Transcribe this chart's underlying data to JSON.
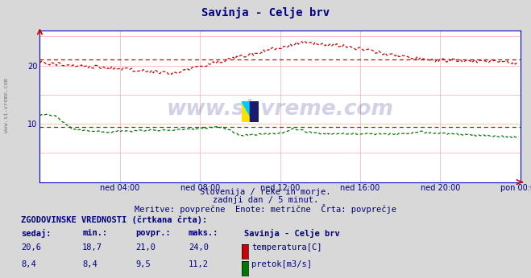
{
  "title": "Savinja - Celje brv",
  "title_color": "#000080",
  "bg_color": "#d8d8d8",
  "plot_bg_color": "#ffffff",
  "grid_color": "#ffaaaa",
  "axis_color": "#0000cc",
  "xlabel_ticks": [
    "ned 04:00",
    "ned 08:00",
    "ned 12:00",
    "ned 16:00",
    "ned 20:00",
    "pon 00:00"
  ],
  "ylim": [
    0,
    26
  ],
  "yticks": [
    10,
    20
  ],
  "watermark_text": "www.si-vreme.com",
  "watermark_color": "#000080",
  "watermark_alpha": 0.18,
  "subtitle1": "Slovenija / reke in morje.",
  "subtitle2": "zadnji dan / 5 minut.",
  "subtitle3": "Meritve: povprečne  Enote: metrične  Črta: povprečje",
  "subtitle_color": "#000080",
  "footer_title": "ZGODOVINSKE VREDNOSTI (črtkana črta):",
  "footer_cols": [
    "sedaj:",
    "min.:",
    "povpr.:",
    "maks.:"
  ],
  "footer_station": "Savinja - Celje brv",
  "footer_temp": [
    20.6,
    18.7,
    21.0,
    24.0
  ],
  "footer_flow": [
    8.4,
    8.4,
    9.5,
    11.2
  ],
  "footer_color": "#000080",
  "temp_color": "#cc0000",
  "flow_color": "#007700",
  "avg_temp": 21.0,
  "avg_flow": 9.5,
  "n_points": 288,
  "side_label": "www.si-vreme.com"
}
